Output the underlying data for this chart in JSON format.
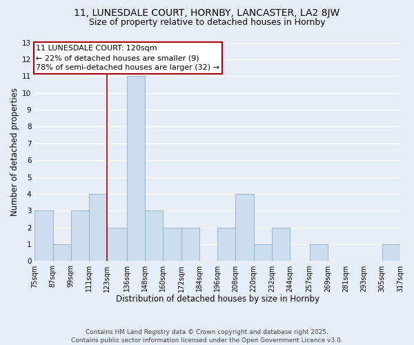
{
  "title_line1": "11, LUNESDALE COURT, HORNBY, LANCASTER, LA2 8JW",
  "title_line2": "Size of property relative to detached houses in Hornby",
  "xlabel": "Distribution of detached houses by size in Hornby",
  "ylabel": "Number of detached properties",
  "bar_color": "#ccdded",
  "bar_edge_color": "#89adc8",
  "bg_color": "#e8eef8",
  "grid_color": "#ffffff",
  "annotation_box_color": "#aa0000",
  "property_line_color": "#aa0000",
  "annotation_text_line1": "11 LUNESDALE COURT: 120sqm",
  "annotation_text_line2": "← 22% of detached houses are smaller (9)",
  "annotation_text_line3": "78% of semi-detached houses are larger (32) →",
  "bin_left_edges": [
    75,
    87,
    99,
    111,
    123,
    136,
    148,
    160,
    172,
    184,
    196,
    208,
    220,
    232,
    244,
    257,
    269,
    281,
    293,
    305
  ],
  "bin_right_edges": [
    87,
    99,
    111,
    123,
    136,
    148,
    160,
    172,
    184,
    196,
    208,
    220,
    232,
    244,
    257,
    269,
    281,
    293,
    305,
    317
  ],
  "tick_positions": [
    75,
    87,
    99,
    111,
    123,
    136,
    148,
    160,
    172,
    184,
    196,
    208,
    220,
    232,
    244,
    257,
    269,
    281,
    293,
    305,
    317
  ],
  "bin_labels": [
    "75sqm",
    "87sqm",
    "99sqm",
    "111sqm",
    "123sqm",
    "136sqm",
    "148sqm",
    "160sqm",
    "172sqm",
    "184sqm",
    "196sqm",
    "208sqm",
    "220sqm",
    "232sqm",
    "244sqm",
    "257sqm",
    "269sqm",
    "281sqm",
    "293sqm",
    "305sqm",
    "317sqm"
  ],
  "counts": [
    3,
    1,
    3,
    4,
    2,
    11,
    3,
    2,
    2,
    0,
    2,
    4,
    1,
    2,
    0,
    1,
    0,
    0,
    0,
    1
  ],
  "property_line_x": 123,
  "ylim": [
    0,
    13
  ],
  "yticks": [
    0,
    1,
    2,
    3,
    4,
    5,
    6,
    7,
    8,
    9,
    10,
    11,
    12,
    13
  ],
  "footer_line1": "Contains HM Land Registry data © Crown copyright and database right 2025.",
  "footer_line2": "Contains public sector information licensed under the Open Government Licence v3.0.",
  "title_fontsize": 10,
  "subtitle_fontsize": 9,
  "axis_label_fontsize": 8.5,
  "tick_fontsize": 7,
  "annotation_fontsize": 8,
  "footer_fontsize": 6.5
}
